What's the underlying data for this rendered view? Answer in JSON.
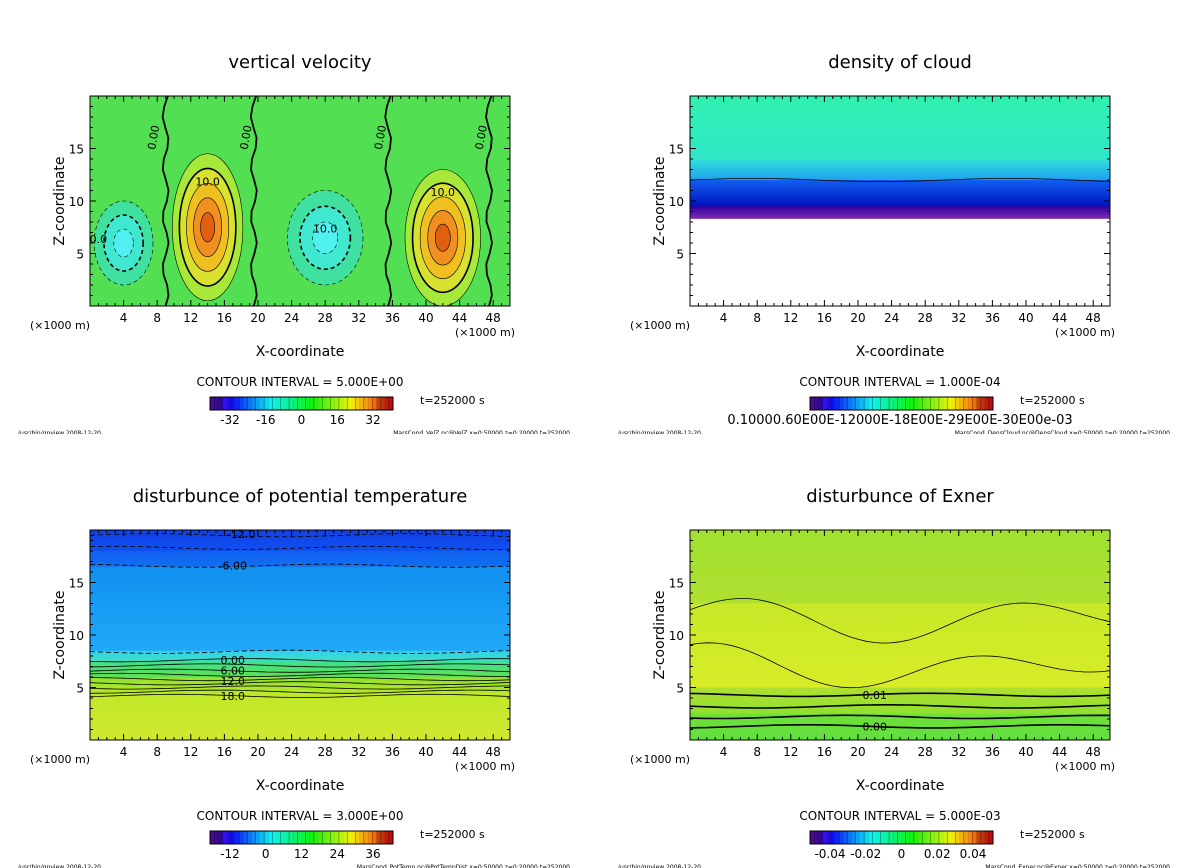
{
  "chart_data": [
    {
      "type": "heatmap",
      "title": "vertical velocity",
      "xlabel": "X-coordinate",
      "ylabel": "Z-coordinate",
      "x_unit": "(×1000 m)",
      "y_unit": "(×1000 m)",
      "xlim": [
        0,
        50
      ],
      "ylim": [
        0,
        20
      ],
      "xticks": [
        "4",
        "8",
        "12",
        "16",
        "20",
        "24",
        "28",
        "32",
        "36",
        "40",
        "44",
        "48"
      ],
      "yticks": [
        "5",
        "10",
        "15"
      ],
      "background": "#52e052",
      "blobs": [
        {
          "x": 14,
          "z": 7.5,
          "rx": 4.2,
          "rz": 7,
          "colors": [
            "#a8e83a",
            "#d8e030",
            "#f0c020",
            "#f09020",
            "#e06010"
          ]
        },
        {
          "x": 42,
          "z": 6.5,
          "rx": 4.5,
          "rz": 6.5,
          "colors": [
            "#a8e83a",
            "#d8e030",
            "#f0c020",
            "#f09020",
            "#e06010"
          ]
        },
        {
          "x": 4,
          "z": 6,
          "rx": 3.5,
          "rz": 4,
          "colors": [
            "#40e0a0",
            "#40e8d0",
            "#50f0f0"
          ]
        },
        {
          "x": 28,
          "z": 6.5,
          "rx": 4.5,
          "rz": 4.5,
          "colors": [
            "#40e0a0",
            "#40e8d0",
            "#50f0f0"
          ]
        }
      ],
      "zero_lines_x": [
        9,
        19.5,
        35.5,
        47.5
      ],
      "contour_labels": [
        "0.00",
        "0.00",
        "0.00",
        "0.00",
        "10.0",
        "10.0",
        "10.0",
        "0.0"
      ],
      "contour_interval": "CONTOUR INTERVAL = 5.000E+00",
      "colorbar_ticks": [
        "-32",
        "-16",
        "0",
        "16",
        "32"
      ],
      "time": "t=252000 s",
      "footer_left": "/usr/bin/gpview  2008-12-20",
      "footer_right": "MarsCond_VelZ.nc@VelZ,x=0:50000,z=0:20000,t=252000"
    },
    {
      "type": "heatmap",
      "title": "density of cloud",
      "xlabel": "X-coordinate",
      "ylabel": "Z-coordinate",
      "x_unit": "(×1000 m)",
      "y_unit": "(×1000 m)",
      "xlim": [
        0,
        50
      ],
      "ylim": [
        0,
        20
      ],
      "xticks": [
        "4",
        "8",
        "12",
        "16",
        "20",
        "24",
        "28",
        "32",
        "36",
        "40",
        "44",
        "48"
      ],
      "yticks": [
        "5",
        "10",
        "15"
      ],
      "bands": [
        {
          "z0": 20,
          "z1": 14,
          "color": "#30f0b0",
          "color2": "#30e8c8"
        },
        {
          "z0": 14,
          "z1": 12,
          "color": "#30e0d8",
          "color2": "#20a0f0"
        },
        {
          "z0": 12,
          "z1": 9.5,
          "color": "#1060f0",
          "color2": "#0010c0"
        },
        {
          "z0": 9.5,
          "z1": 8.3,
          "color": "#3000a0",
          "color2": "#8030b0"
        },
        {
          "z0": 8.3,
          "z1": 0,
          "color": "#ffffff",
          "color2": "#ffffff"
        }
      ],
      "lines_z": [
        12
      ],
      "contour_labels": [],
      "contour_interval": "CONTOUR INTERVAL = 1.000E-04",
      "colorbar_ticks": [
        "0.10000.60E00E-12000E-18E00E-29E00E-30E00e-03"
      ],
      "time": "t=252000 s",
      "footer_left": "/usr/bin/gpview  2008-12-20",
      "footer_right": "MarsCond_DensCloud.nc@DensCloud,x=0:50000,z=0:20000,t=252000"
    },
    {
      "type": "heatmap",
      "title": "disturbunce of potential temperature",
      "xlabel": "X-coordinate",
      "ylabel": "Z-coordinate",
      "x_unit": "(×1000 m)",
      "y_unit": "(×1000 m)",
      "xlim": [
        0,
        50
      ],
      "ylim": [
        0,
        20
      ],
      "xticks": [
        "4",
        "8",
        "12",
        "16",
        "20",
        "24",
        "28",
        "32",
        "36",
        "40",
        "44",
        "48"
      ],
      "yticks": [
        "5",
        "10",
        "15"
      ],
      "bands": [
        {
          "z0": 20,
          "z1": 18,
          "color": "#1040e8",
          "color2": "#1050f0"
        },
        {
          "z0": 18,
          "z1": 16.5,
          "color": "#1060f0",
          "color2": "#1070f0"
        },
        {
          "z0": 16.5,
          "z1": 8.5,
          "color": "#1090f0",
          "color2": "#20a8f8"
        },
        {
          "z0": 8.5,
          "z1": 7.5,
          "color": "#30d0f0",
          "color2": "#40e0c0"
        },
        {
          "z0": 7.5,
          "z1": 6,
          "color": "#40e090",
          "color2": "#60e050"
        },
        {
          "z0": 6,
          "z1": 4.5,
          "color": "#90e030",
          "color2": "#b8e828"
        },
        {
          "z0": 4.5,
          "z1": 0,
          "color": "#c0e828",
          "color2": "#d0e830"
        }
      ],
      "lines_z": [
        19.5,
        18.3,
        16.6,
        8.4,
        7.6,
        7.1,
        6.6,
        6.2,
        5.8,
        5.4,
        5.0,
        4.6,
        4.2
      ],
      "dashed_above": 8,
      "contour_labels": [
        "-12.0",
        "-6.00",
        "0.00",
        "6.00",
        "12.0",
        "18.0"
      ],
      "contour_label_z": [
        19.6,
        16.6,
        7.6,
        6.6,
        5.6,
        4.2
      ],
      "contour_label_x": [
        18,
        17,
        17,
        17,
        17,
        17
      ],
      "contour_interval": "CONTOUR INTERVAL = 3.000E+00",
      "colorbar_ticks": [
        "-12",
        "0",
        "12",
        "24",
        "36"
      ],
      "time": "t=252000 s",
      "footer_left": "/usr/bin/gpview  2008-12-20",
      "footer_right": "MarsCond_PotTemp.nc@PotTempDist,x=0:50000,z=0:20000,t=252000"
    },
    {
      "type": "heatmap",
      "title": "disturbunce of Exner",
      "xlabel": "X-coordinate",
      "ylabel": "Z-coordinate",
      "x_unit": "(×1000 m)",
      "y_unit": "(×1000 m)",
      "xlim": [
        0,
        50
      ],
      "ylim": [
        0,
        20
      ],
      "xticks": [
        "4",
        "8",
        "12",
        "16",
        "20",
        "24",
        "28",
        "32",
        "36",
        "40",
        "44",
        "48"
      ],
      "yticks": [
        "5",
        "10",
        "15"
      ],
      "bands": [
        {
          "z0": 20,
          "z1": 13,
          "color": "#a0e030",
          "color2": "#b0e030"
        },
        {
          "z0": 13,
          "z1": 5,
          "color": "#c8e828",
          "color2": "#d8ec28"
        },
        {
          "z0": 5,
          "z1": 2.5,
          "color": "#b0e030",
          "color2": "#90e030"
        },
        {
          "z0": 2.5,
          "z1": 0,
          "color": "#70e038",
          "color2": "#60e040"
        }
      ],
      "lines_z": [
        11.5,
        7,
        4.3,
        3.2,
        2.2,
        1.3
      ],
      "contour_labels": [
        "0.01",
        "0.00"
      ],
      "contour_label_z": [
        4.3,
        1.3
      ],
      "contour_label_x": [
        22,
        22
      ],
      "contour_interval": "CONTOUR INTERVAL = 5.000E-03",
      "colorbar_ticks": [
        "-0.04",
        "-0.02",
        "0",
        "0.02",
        "0.04"
      ],
      "time": "t=252000 s",
      "footer_left": "/usr/bin/gpview  2008-12-20",
      "footer_right": "MarsCond_Exner.nc@Exner,x=0:50000,z=0:20000,t=252000"
    }
  ]
}
